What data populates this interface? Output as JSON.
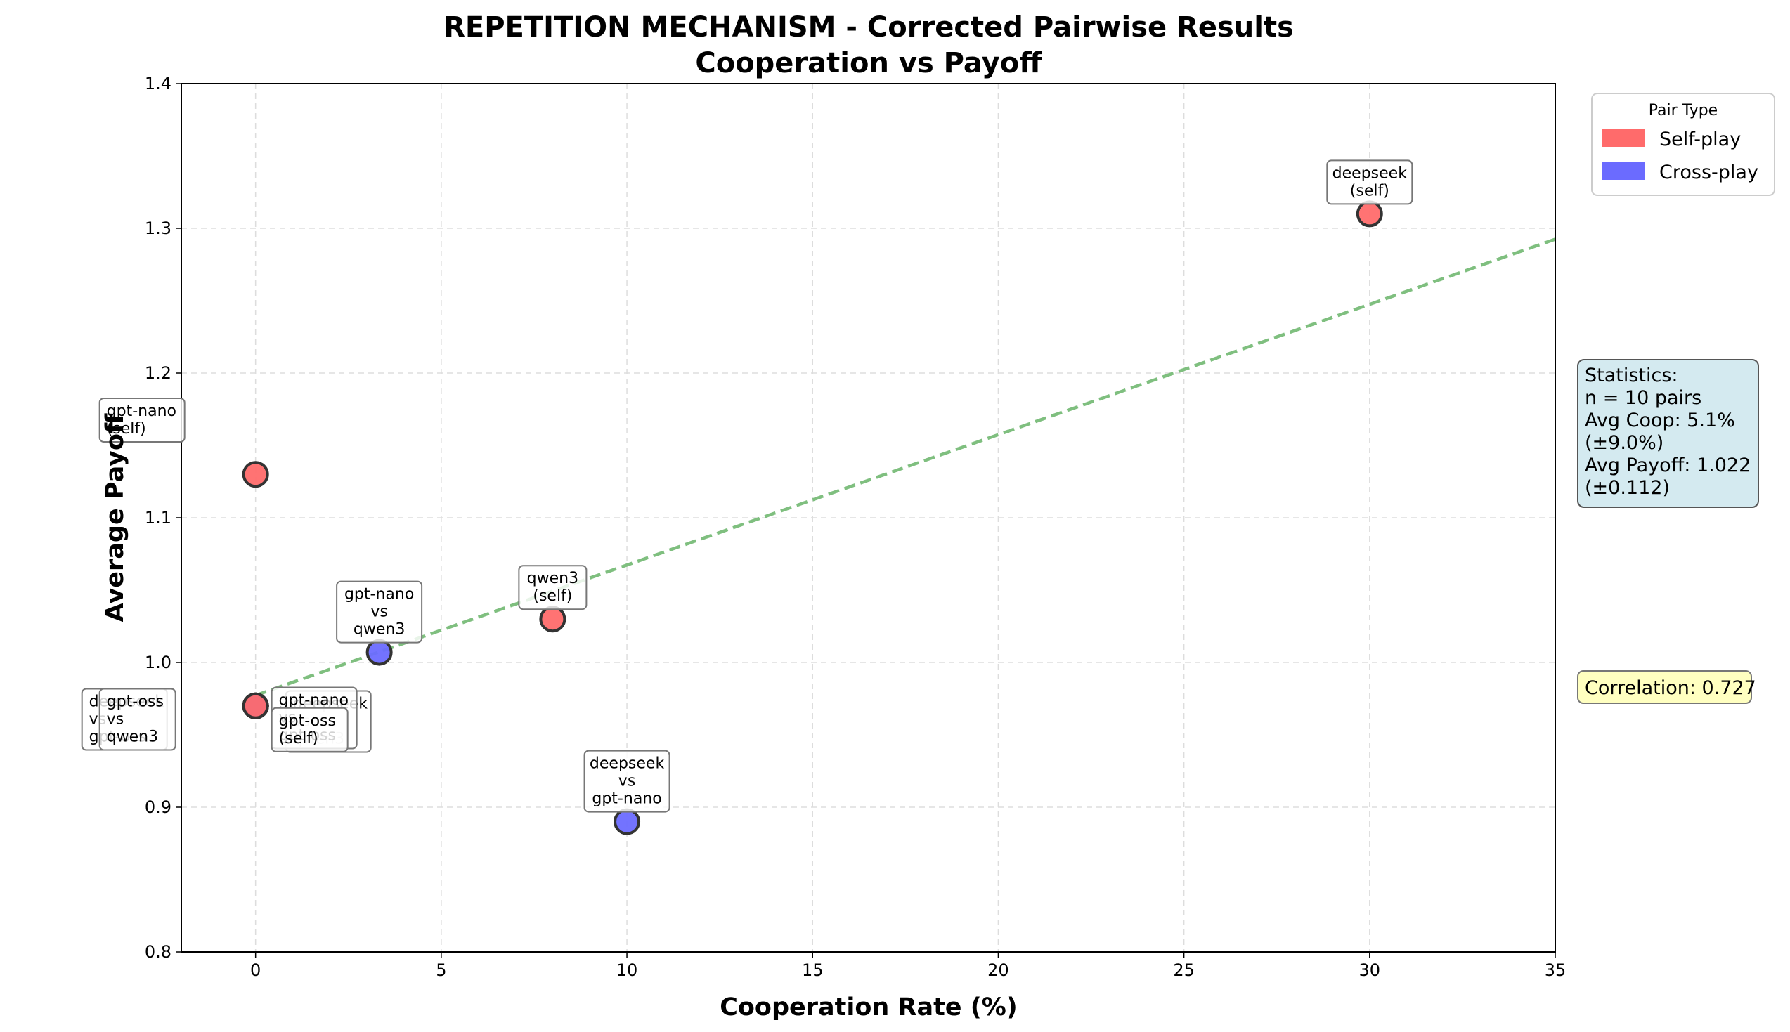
{
  "chart_data": {
    "type": "scatter",
    "title": [
      "REPETITION MECHANISM - Corrected Pairwise Results",
      "Cooperation vs Payoff"
    ],
    "xlabel": "Cooperation Rate (%)",
    "ylabel": "Average Payoff",
    "xlim": [
      -2,
      35
    ],
    "ylim": [
      0.8,
      1.4
    ],
    "xticks": [
      0,
      5,
      10,
      15,
      20,
      25,
      30,
      35
    ],
    "yticks": [
      0.8,
      0.9,
      1.0,
      1.1,
      1.2,
      1.3,
      1.4
    ],
    "grid": true,
    "legend": {
      "title": "Pair Type",
      "placement": "outside-top-right",
      "entries": [
        {
          "label": "Self-play",
          "color": "#ff6b6b"
        },
        {
          "label": "Cross-play",
          "color": "#6b6bff"
        }
      ]
    },
    "points": [
      {
        "x": 30.0,
        "y": 1.31,
        "type": "self",
        "label": [
          "deepseek",
          "(self)"
        ],
        "ann": "above"
      },
      {
        "x": 0.0,
        "y": 1.13,
        "type": "self",
        "label": [
          "gpt-nano",
          "(self)"
        ],
        "ann": "far-left"
      },
      {
        "x": 8.0,
        "y": 1.03,
        "type": "self",
        "label": [
          "qwen3",
          "(self)"
        ],
        "ann": "above"
      },
      {
        "x": 3.33,
        "y": 1.007,
        "type": "cross",
        "label": [
          "gpt-nano",
          "vs",
          "qwen3"
        ],
        "ann": "above"
      },
      {
        "x": 10.0,
        "y": 0.89,
        "type": "cross",
        "label": [
          "deepseek",
          "vs",
          "gpt-nano"
        ],
        "ann": "above"
      },
      {
        "x": 0.0,
        "y": 0.97,
        "type": "cross",
        "label": [
          "deepseek",
          "vs",
          "gpt-oss"
        ],
        "ann": "left-1"
      },
      {
        "x": 0.0,
        "y": 0.97,
        "type": "cross",
        "label": [
          "gpt-oss",
          "vs",
          "qwen3"
        ],
        "ann": "left-2"
      },
      {
        "x": 0.0,
        "y": 0.97,
        "type": "cross",
        "label": [
          "deepseek",
          "vs",
          "qwen3"
        ],
        "ann": "right-1"
      },
      {
        "x": 0.0,
        "y": 0.97,
        "type": "cross",
        "label": [
          "gpt-nano",
          "vs",
          "gpt-oss"
        ],
        "ann": "right-2"
      },
      {
        "x": 0.0,
        "y": 0.97,
        "type": "self",
        "label": [
          "gpt-oss",
          "(self)"
        ],
        "ann": "right-3"
      }
    ],
    "trendline": {
      "x": [
        0,
        35
      ],
      "y": [
        0.9773,
        1.2925
      ],
      "color": "#7fbf7f",
      "style": "dashed"
    },
    "stats_box": {
      "lines": [
        "Statistics:",
        "n = 10 pairs",
        "Avg Coop: 5.1%",
        "(±9.0%)",
        "Avg Payoff: 1.022",
        "(±0.112)"
      ],
      "color": "#d4eaf0"
    },
    "correlation_box": {
      "text": "Correlation: 0.727",
      "color": "#ffffc0"
    }
  }
}
